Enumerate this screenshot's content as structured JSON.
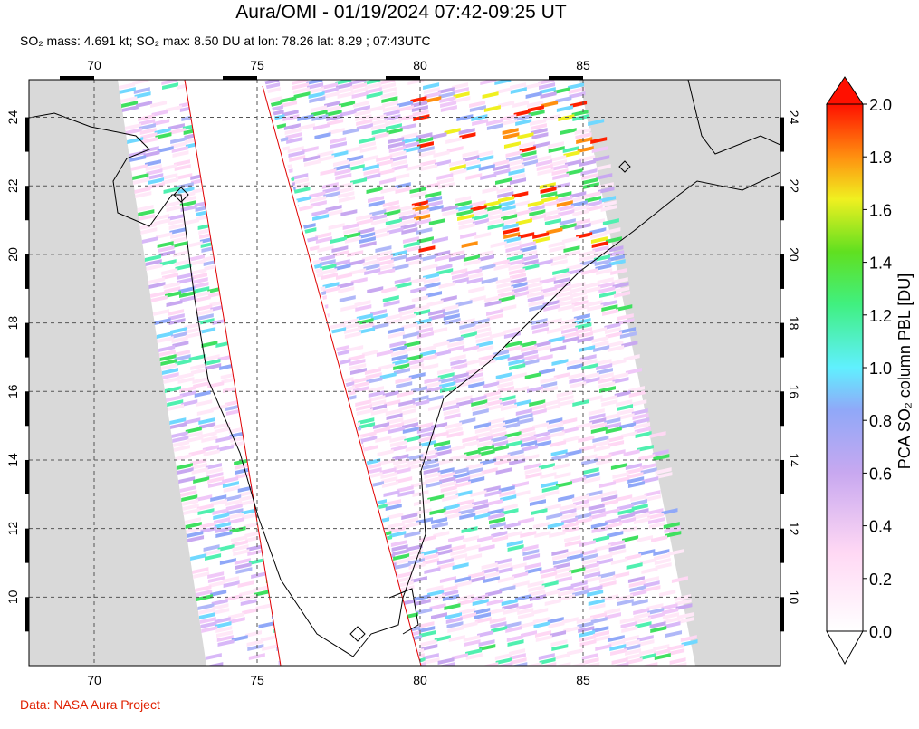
{
  "header": {
    "title": "Aura/OMI - 01/19/2024 07:42-09:25 UT",
    "subtitle": "SO₂ mass: 4.691 kt; SO₂ max: 8.50 DU at lon: 78.26 lat: 8.29 ; 07:43UTC"
  },
  "map": {
    "lon_ticks": [
      70,
      75,
      80,
      85
    ],
    "lat_ticks": [
      10,
      12,
      14,
      16,
      18,
      20,
      22,
      24
    ]
  },
  "colorbar": {
    "label": "PCA SO₂ column PBL [DU]",
    "ticks": [
      {
        "value": 0,
        "label": "0.0"
      },
      {
        "value": 0.2,
        "label": "0.2"
      },
      {
        "value": 0.4,
        "label": "0.4"
      },
      {
        "value": 0.6,
        "label": "0.6"
      },
      {
        "value": 0.8,
        "label": "0.8"
      },
      {
        "value": 1,
        "label": "1.0"
      },
      {
        "value": 1.2,
        "label": "1.2"
      },
      {
        "value": 1.4,
        "label": "1.4"
      },
      {
        "value": 1.6,
        "label": "1.6"
      },
      {
        "value": 1.8,
        "label": "1.8"
      },
      {
        "value": 2,
        "label": "2.0"
      }
    ]
  },
  "footer": {
    "credit": "Data: NASA Aura Project"
  }
}
